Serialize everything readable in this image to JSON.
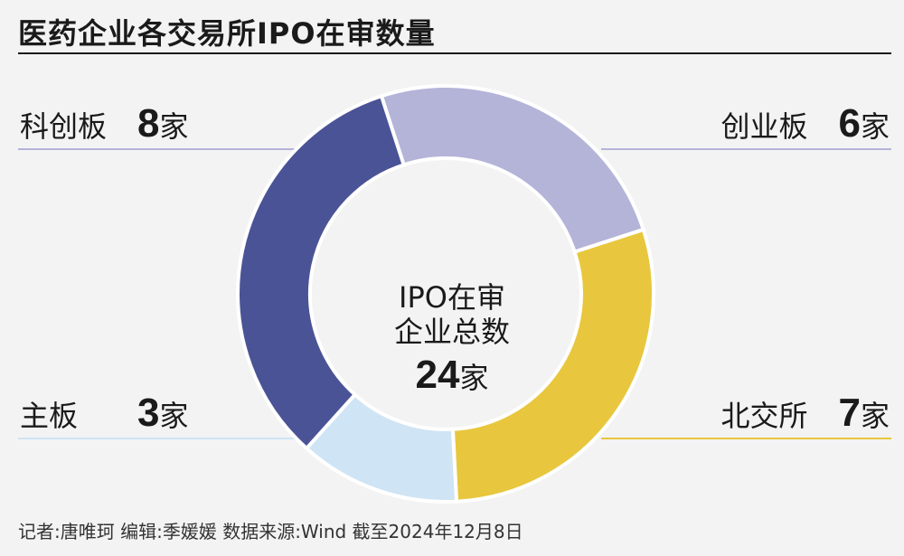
{
  "title": "医药企业各交易所IPO在审数量",
  "chart_data": {
    "type": "pie",
    "title": "医药企业各交易所IPO在审数量",
    "slices": [
      {
        "label": "科创板",
        "value": 8,
        "unit": "家",
        "color": "#4a5396"
      },
      {
        "label": "创业板",
        "value": 6,
        "unit": "家",
        "color": "#b4b4d9"
      },
      {
        "label": "北交所",
        "value": 7,
        "unit": "家",
        "color": "#e8c73e"
      },
      {
        "label": "主板",
        "value": 3,
        "unit": "家",
        "color": "#cfe4f4"
      }
    ],
    "center": {
      "line1": "IPO在审",
      "line2": "企业总数",
      "total": "24",
      "unit": "家"
    }
  },
  "footer": "记者:唐唯珂 编辑:季媛媛 数据来源:Wind 截至2024年12月8日"
}
